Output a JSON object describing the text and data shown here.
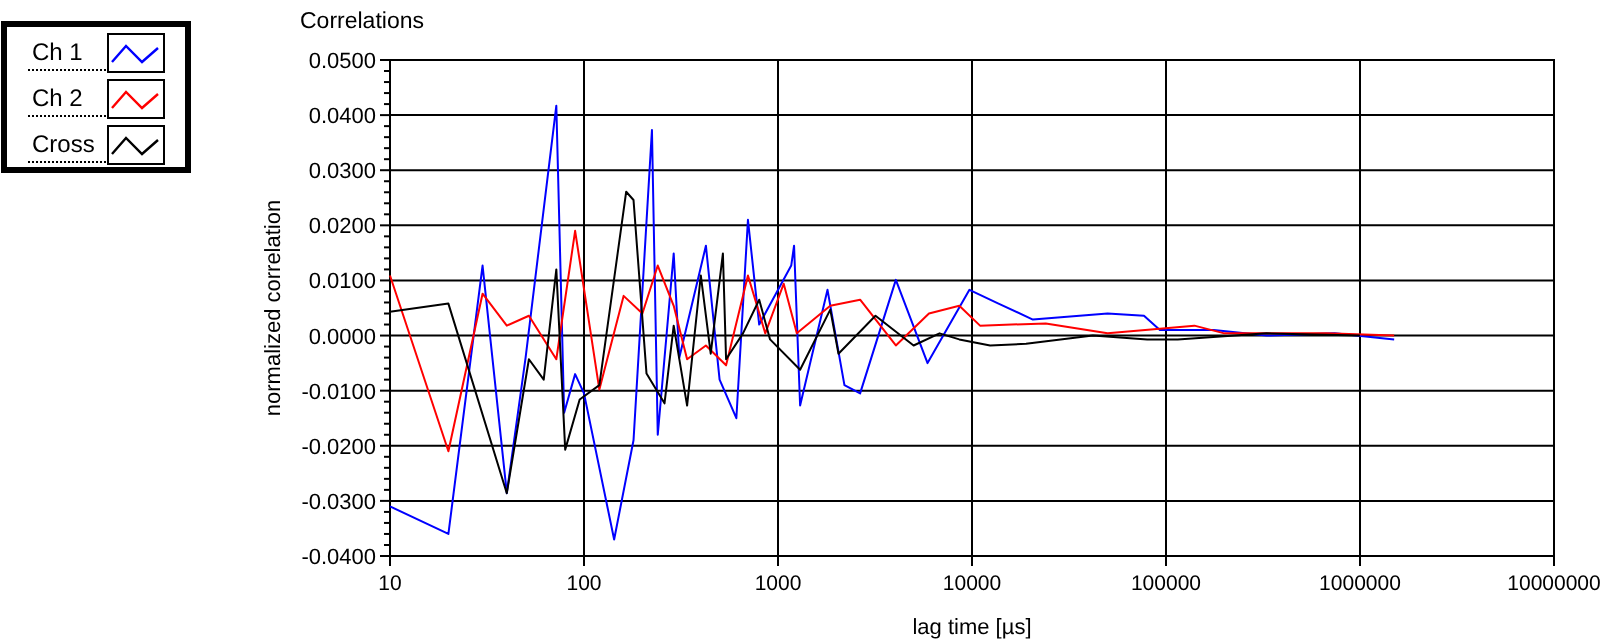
{
  "chart_data": {
    "type": "line",
    "title": "Correlations",
    "xlabel": "lag time [µs]",
    "ylabel": "normalized correlation",
    "log": "x",
    "grid": true,
    "legend": "top left",
    "line_style": "solid",
    "xlim": [
      10,
      10000000
    ],
    "xticks": [
      10,
      100,
      1000,
      10000,
      100000,
      1000000,
      10000000
    ],
    "ylim": [
      -0.04,
      0.05
    ],
    "yticks": [
      {
        "value": -0.04,
        "label": "-0.0400"
      },
      {
        "value": -0.03,
        "label": "-0.0300"
      },
      {
        "value": -0.02,
        "label": "-0.0200"
      },
      {
        "value": -0.01,
        "label": "-0.0100"
      },
      {
        "value": 0,
        "label": "0.0000"
      },
      {
        "value": 0.01,
        "label": "0.0100"
      },
      {
        "value": 0.02,
        "label": "0.0200"
      },
      {
        "value": 0.03,
        "label": "0.0300"
      },
      {
        "value": 0.04,
        "label": "0.0400"
      },
      {
        "value": 0.05,
        "label": "0.0500"
      }
    ],
    "series": [
      {
        "name": "Ch 1",
        "color": "#0000ff",
        "x": [
          10,
          20,
          30,
          40,
          50,
          72,
          79,
          90,
          100,
          143,
          180,
          224,
          240,
          290,
          310,
          425,
          500,
          610,
          700,
          800,
          1170,
          1210,
          1300,
          1800,
          2200,
          2650,
          4050,
          5900,
          9700,
          13700,
          20600,
          50000,
          77000,
          93000,
          176000,
          330000,
          740000,
          1500000
        ],
        "values": [
          -0.031,
          -0.036,
          0.0127,
          -0.0286,
          -0.004,
          0.0417,
          -0.014,
          -0.007,
          -0.0105,
          -0.037,
          -0.019,
          0.0373,
          -0.018,
          0.0149,
          -0.004,
          0.0163,
          -0.008,
          -0.015,
          0.021,
          0.002,
          0.0127,
          0.0163,
          -0.0127,
          0.0083,
          -0.009,
          -0.0105,
          0.0101,
          -0.005,
          0.0083,
          0.0058,
          0.0029,
          0.004,
          0.0036,
          0.001,
          0.001,
          0,
          0.0004,
          -0.0007
        ]
      },
      {
        "name": "Ch 2",
        "color": "#ff0000",
        "x": [
          10,
          20,
          30,
          40,
          52,
          72,
          90,
          120,
          160,
          200,
          240,
          290,
          340,
          425,
          540,
          700,
          860,
          1070,
          1250,
          1860,
          2650,
          4050,
          6000,
          8600,
          11000,
          24000,
          50000,
          140000,
          200000,
          670000,
          1500000
        ],
        "values": [
          0.0109,
          -0.021,
          0.0076,
          0.0018,
          0.0036,
          -0.0043,
          0.019,
          -0.0098,
          0.0072,
          0.004,
          0.0127,
          0.0054,
          -0.0043,
          -0.0018,
          -0.0054,
          0.0109,
          0.0004,
          0.0094,
          0.0004,
          0.0054,
          0.0065,
          -0.0018,
          0.004,
          0.0054,
          0.0018,
          0.0022,
          0.0004,
          0.0018,
          0.0004,
          0.0004,
          0
        ]
      },
      {
        "name": "Cross",
        "color": "#000000",
        "x": [
          10,
          20,
          40,
          52,
          62,
          72,
          80,
          95,
          120,
          165,
          180,
          210,
          260,
          290,
          340,
          400,
          450,
          520,
          540,
          660,
          800,
          910,
          1300,
          1860,
          2050,
          3180,
          5000,
          6800,
          8600,
          12400,
          19000,
          42000,
          80000,
          115000,
          330000,
          1000000
        ],
        "values": [
          0.0043,
          0.0058,
          -0.0286,
          -0.0043,
          -0.008,
          0.012,
          -0.0207,
          -0.0116,
          -0.009,
          0.0261,
          0.0246,
          -0.0069,
          -0.0123,
          0.0018,
          -0.0127,
          0.0109,
          -0.0033,
          0.0149,
          -0.0043,
          0.0004,
          0.0065,
          -0.0007,
          -0.0062,
          0.0047,
          -0.0033,
          0.0036,
          -0.0018,
          0.0004,
          -0.0007,
          -0.0018,
          -0.0015,
          0,
          -0.0007,
          -0.0007,
          0.0004,
          0
        ]
      }
    ]
  }
}
